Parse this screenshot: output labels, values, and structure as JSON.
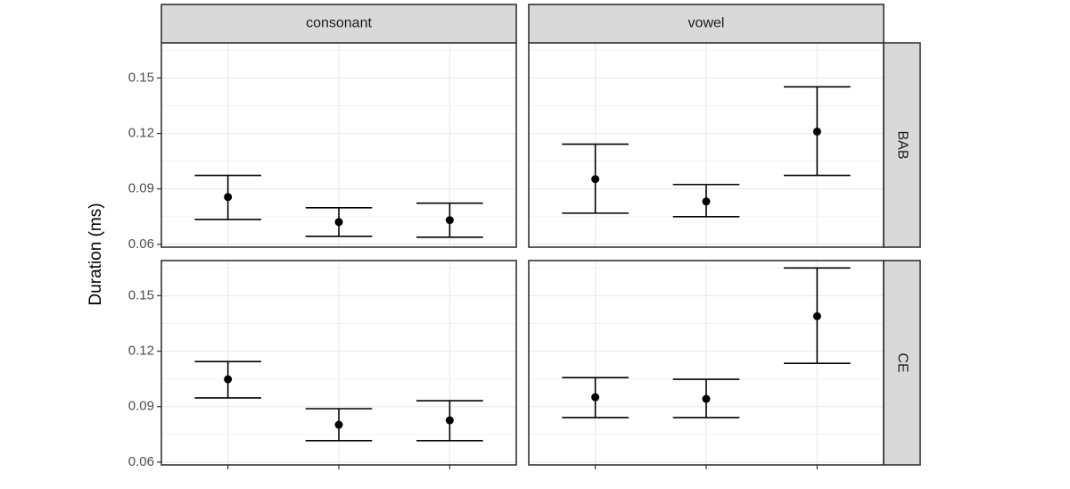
{
  "chart_data": {
    "type": "facet",
    "ylabel": "Duration (ms)",
    "columns": [
      "consonant",
      "vowel"
    ],
    "rows": [
      "BAB",
      "CE"
    ],
    "categories": [
      null,
      null,
      null
    ],
    "ylim": [
      0.0585,
      0.169
    ],
    "yticks": [
      0.06,
      0.09,
      0.12,
      0.15
    ],
    "grid": true,
    "color": "#000000",
    "panels": [
      {
        "values": [
          0.0856,
          0.0721,
          0.0731
        ],
        "lower": [
          0.0735,
          0.0644,
          0.0639
        ],
        "upper": [
          0.0973,
          0.0798,
          0.0823
        ]
      },
      {
        "values": [
          0.0953,
          0.0832,
          0.121
        ],
        "lower": [
          0.0769,
          0.075,
          0.0973
        ],
        "upper": [
          0.1142,
          0.0924,
          0.1452
        ]
      },
      {
        "values": [
          0.1048,
          0.0802,
          0.0826
        ],
        "lower": [
          0.0947,
          0.0716,
          0.0716
        ],
        "upper": [
          0.1144,
          0.0889,
          0.0932
        ]
      },
      {
        "values": [
          0.0951,
          0.0942,
          0.1389
        ],
        "lower": [
          0.0841,
          0.0841,
          0.1134
        ],
        "upper": [
          0.1057,
          0.1048,
          0.165
        ]
      }
    ]
  }
}
